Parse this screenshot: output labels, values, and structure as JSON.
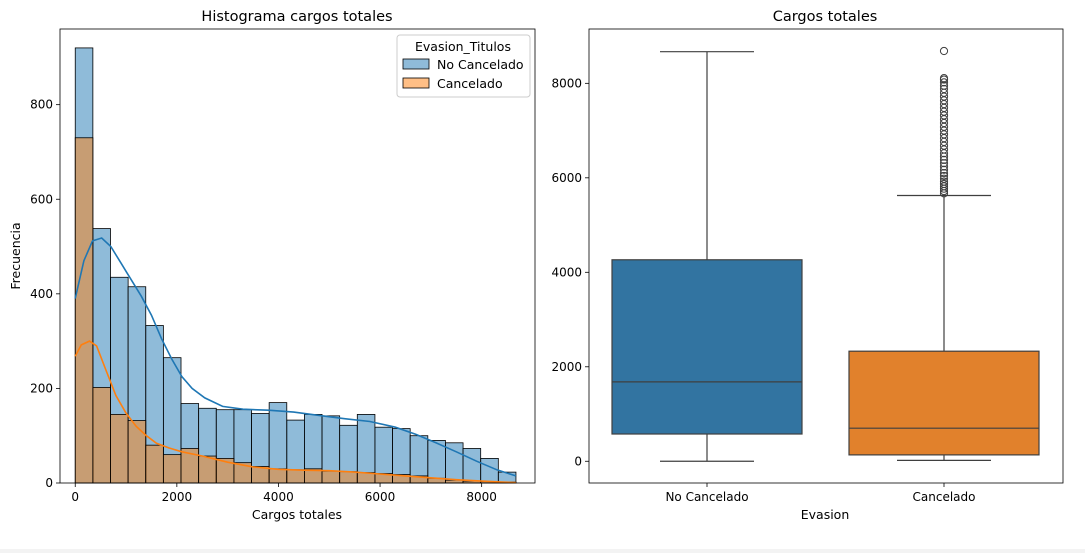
{
  "chart_data": [
    {
      "type": "histogram",
      "title": "Histograma cargos totales",
      "xlabel": "Cargos totales",
      "ylabel": "Frecuencia",
      "xlim": [
        -300,
        9050
      ],
      "ylim": [
        0,
        960
      ],
      "xticks": [
        0,
        2000,
        4000,
        6000,
        8000
      ],
      "yticks": [
        0,
        200,
        400,
        600,
        800
      ],
      "bin_edges": [
        0,
        347,
        694,
        1041,
        1388,
        1735,
        2082,
        2429,
        2776,
        3123,
        3470,
        3817,
        4164,
        4511,
        4858,
        5205,
        5552,
        5899,
        6246,
        6593,
        6940,
        7287,
        7634,
        7981,
        8328,
        8675
      ],
      "legend": {
        "title": "Evasion_Titulos",
        "position": "top-right",
        "entries": [
          "No Cancelado",
          "Cancelado"
        ]
      },
      "series": [
        {
          "name": "No Cancelado",
          "color": "#1f77b4",
          "values": [
            920,
            538,
            435,
            415,
            333,
            265,
            168,
            158,
            155,
            155,
            147,
            170,
            133,
            145,
            142,
            122,
            145,
            118,
            115,
            100,
            90,
            85,
            73,
            52,
            23
          ],
          "kde": [
            [
              0,
              390
            ],
            [
              170,
              470
            ],
            [
              340,
              512
            ],
            [
              520,
              518
            ],
            [
              700,
              500
            ],
            [
              900,
              465
            ],
            [
              1100,
              430
            ],
            [
              1300,
              395
            ],
            [
              1500,
              355
            ],
            [
              1700,
              305
            ],
            [
              1900,
              262
            ],
            [
              2100,
              225
            ],
            [
              2300,
              200
            ],
            [
              2550,
              180
            ],
            [
              2900,
              162
            ],
            [
              3300,
              156
            ],
            [
              3800,
              154
            ],
            [
              4300,
              150
            ],
            [
              4800,
              143
            ],
            [
              5300,
              136
            ],
            [
              5800,
              130
            ],
            [
              6300,
              118
            ],
            [
              6700,
              103
            ],
            [
              7100,
              85
            ],
            [
              7500,
              66
            ],
            [
              7900,
              46
            ],
            [
              8300,
              28
            ],
            [
              8675,
              15
            ]
          ]
        },
        {
          "name": "Cancelado",
          "color": "#ff7f0e",
          "values": [
            730,
            202,
            145,
            132,
            80,
            60,
            73,
            57,
            52,
            43,
            35,
            30,
            28,
            30,
            25,
            24,
            22,
            20,
            18,
            15,
            10,
            6,
            4,
            3,
            2
          ],
          "kde": [
            [
              0,
              268
            ],
            [
              120,
              292
            ],
            [
              280,
              300
            ],
            [
              420,
              290
            ],
            [
              600,
              240
            ],
            [
              800,
              185
            ],
            [
              1000,
              148
            ],
            [
              1200,
              120
            ],
            [
              1400,
              100
            ],
            [
              1600,
              84
            ],
            [
              1850,
              74
            ],
            [
              2100,
              66
            ],
            [
              2500,
              57
            ],
            [
              3000,
              44
            ],
            [
              3500,
              34
            ],
            [
              4000,
              29
            ],
            [
              4500,
              27
            ],
            [
              5000,
              26
            ],
            [
              5500,
              23
            ],
            [
              6000,
              19
            ],
            [
              6500,
              15
            ],
            [
              7000,
              11
            ],
            [
              7500,
              7
            ],
            [
              8000,
              4
            ],
            [
              8400,
              2
            ],
            [
              8675,
              1
            ]
          ]
        }
      ]
    },
    {
      "type": "boxplot",
      "title": "Cargos totales",
      "xlabel": "Evasion",
      "ylabel": "",
      "ylim": [
        -460,
        9150
      ],
      "yticks": [
        0,
        2000,
        4000,
        6000,
        8000
      ],
      "categories": [
        "No Cancelado",
        "Cancelado"
      ],
      "series": [
        {
          "name": "No Cancelado",
          "color": "#3274a1",
          "whisker_low": 0,
          "q1": 577,
          "median": 1680,
          "q3": 4265,
          "whisker_high": 8670,
          "outliers": []
        },
        {
          "name": "Cancelado",
          "color": "#e1812c",
          "whisker_low": 19,
          "q1": 135,
          "median": 700,
          "q3": 2330,
          "whisker_high": 5625,
          "outliers": [
            5670,
            5720,
            5770,
            5820,
            5870,
            5920,
            5980,
            6040,
            6100,
            6170,
            6240,
            6310,
            6380,
            6450,
            6520,
            6600,
            6680,
            6760,
            6840,
            6920,
            7000,
            7080,
            7160,
            7240,
            7320,
            7400,
            7480,
            7560,
            7640,
            7720,
            7800,
            7880,
            7950,
            8020,
            8080,
            8110,
            8684
          ]
        }
      ]
    }
  ]
}
